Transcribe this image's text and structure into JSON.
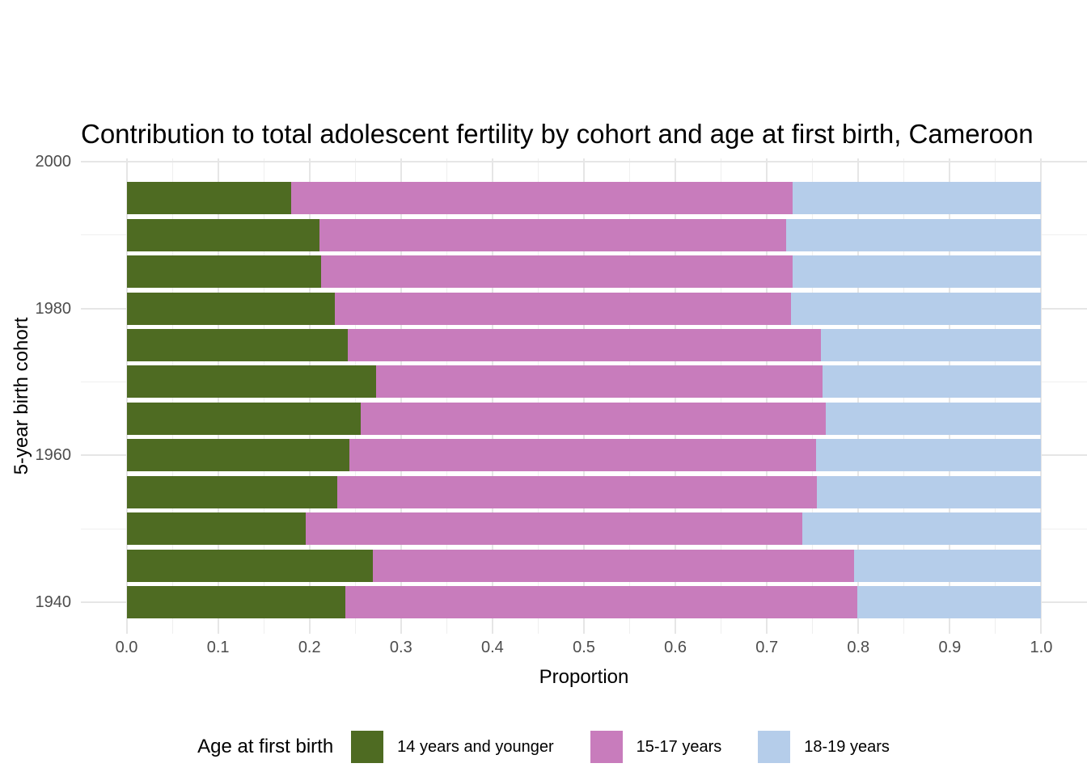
{
  "chart_data": {
    "type": "bar",
    "orientation": "horizontal",
    "stacked": true,
    "title": "Contribution to total adolescent fertility by cohort and age at first birth,  Cameroon",
    "xlabel": "Proportion",
    "ylabel": "5-year birth cohort",
    "xlim": [
      -0.05,
      1.05
    ],
    "ylim": [
      1935.7,
      2000.44
    ],
    "grid": true,
    "x_tick_values": [
      0,
      0.1,
      0.2,
      0.3,
      0.4,
      0.5,
      0.6,
      0.7,
      0.8,
      0.9,
      1.0
    ],
    "x_tick_labels": [
      "0.0",
      "0.1",
      "0.2",
      "0.3",
      "0.4",
      "0.5",
      "0.6",
      "0.7",
      "0.8",
      "0.9",
      "1.0"
    ],
    "x_minor_tick_values": [
      0.05,
      0.15,
      0.25,
      0.35,
      0.45,
      0.55,
      0.65,
      0.75,
      0.85,
      0.95
    ],
    "y_tick_values": [
      2000,
      1980,
      1960,
      1940
    ],
    "y_tick_labels": [
      "2000",
      "1980",
      "1960",
      "1940"
    ],
    "y_minor_tick_values": [
      1990,
      1970,
      1950
    ],
    "categories": [
      1995,
      1990,
      1985,
      1980,
      1975,
      1970,
      1965,
      1960,
      1955,
      1950,
      1945,
      1940
    ],
    "bar_thickness_years": 4.4,
    "series": [
      {
        "name": "14 years and younger",
        "color": "#4e6b22",
        "values": [
          0.18,
          0.211,
          0.213,
          0.228,
          0.242,
          0.273,
          0.256,
          0.244,
          0.23,
          0.196,
          0.269,
          0.239
        ]
      },
      {
        "name": "15-17 years",
        "color": "#c87cbc",
        "values": [
          0.548,
          0.51,
          0.515,
          0.498,
          0.517,
          0.488,
          0.508,
          0.51,
          0.525,
          0.543,
          0.526,
          0.56
        ]
      },
      {
        "name": "18-19 years",
        "color": "#b5cdea",
        "values": [
          0.272,
          0.279,
          0.272,
          0.274,
          0.241,
          0.239,
          0.236,
          0.246,
          0.245,
          0.261,
          0.205,
          0.201
        ]
      }
    ],
    "legend_title": "Age at first birth",
    "legend_position": "bottom"
  }
}
